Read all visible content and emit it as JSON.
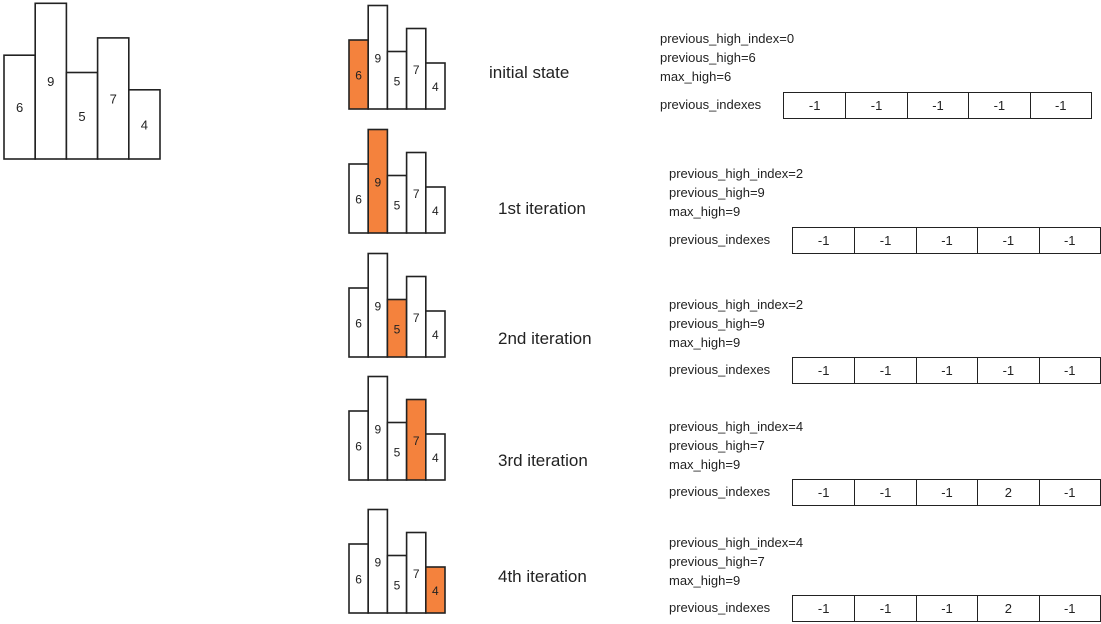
{
  "main_chart": {
    "bars": [
      "6",
      "9",
      "5",
      "7",
      "4"
    ],
    "heights": [
      6,
      9,
      5,
      7,
      4
    ]
  },
  "highlight_color": "#F4823D",
  "steps": [
    {
      "title": "initial state",
      "highlight": 0,
      "info": [
        "previous_high_index=0",
        "previous_high=6",
        "max_high=6"
      ],
      "prev_label": "previous_indexes",
      "array": [
        "-1",
        "-1",
        "-1",
        "-1",
        "-1"
      ]
    },
    {
      "title": "1st iteration",
      "highlight": 1,
      "info": [
        "previous_high_index=2",
        "previous_high=9",
        "max_high=9"
      ],
      "prev_label": "previous_indexes",
      "array": [
        "-1",
        "-1",
        "-1",
        "-1",
        "-1"
      ]
    },
    {
      "title": "2nd iteration",
      "highlight": 2,
      "info": [
        "previous_high_index=2",
        "previous_high=9",
        "max_high=9"
      ],
      "prev_label": "previous_indexes",
      "array": [
        "-1",
        "-1",
        "-1",
        "-1",
        "-1"
      ]
    },
    {
      "title": "3rd iteration",
      "highlight": 3,
      "info": [
        "previous_high_index=4",
        "previous_high=7",
        "max_high=9"
      ],
      "prev_label": "previous_indexes",
      "array": [
        "-1",
        "-1",
        "-1",
        "2",
        "-1"
      ]
    },
    {
      "title": "4th iteration",
      "highlight": 4,
      "info": [
        "previous_high_index=4",
        "previous_high=7",
        "max_high=9"
      ],
      "prev_label": "previous_indexes",
      "array": [
        "-1",
        "-1",
        "-1",
        "2",
        "-1"
      ]
    }
  ]
}
